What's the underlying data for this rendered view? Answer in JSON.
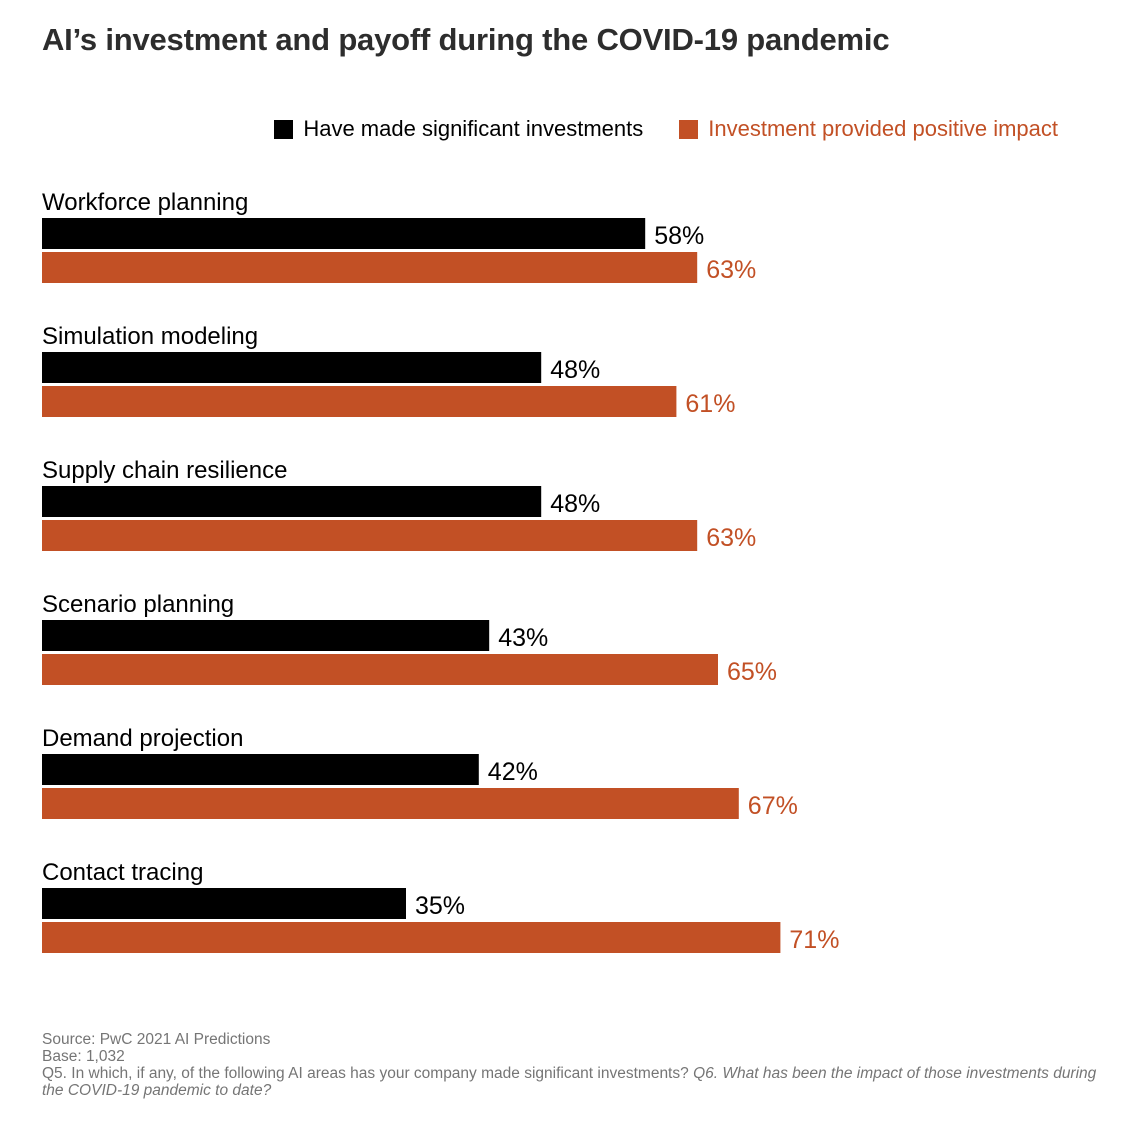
{
  "chart_data": {
    "type": "bar",
    "orientation": "horizontal",
    "title": "AI’s investment and payoff during the COVID-19 pandemic",
    "categories": [
      "Workforce planning",
      "Simulation modeling",
      "Supply chain resilience",
      "Scenario planning",
      "Demand projection",
      "Contact tracing"
    ],
    "series": [
      {
        "name": "Have made significant investments",
        "color": "#000000",
        "values": [
          58,
          48,
          48,
          43,
          42,
          35
        ],
        "labels": [
          "58%",
          "48%",
          "48%",
          "43%",
          "42%",
          "35%"
        ]
      },
      {
        "name": "Investment provided positive impact",
        "color": "#c25025",
        "values": [
          63,
          61,
          63,
          65,
          67,
          71
        ],
        "labels": [
          "63%",
          "61%",
          "63%",
          "65%",
          "67%",
          "71%"
        ]
      }
    ],
    "value_unit": "%",
    "xlim": [
      0,
      100
    ],
    "legend_position": "top-right",
    "grid": false
  },
  "footnote": {
    "source": "Source: PwC 2021 AI Predictions",
    "base": "Base: 1,032",
    "q5": "Q5. In which, if any, of the following AI areas has your company made significant investments?",
    "q6": "Q6. What has been the impact of those investments during the COVID-19 pandemic to date?"
  }
}
